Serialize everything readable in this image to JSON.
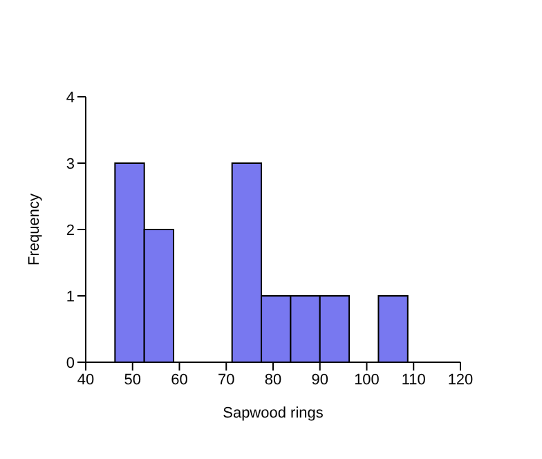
{
  "chart_data": {
    "type": "histogram",
    "xlabel": "Sapwood rings",
    "ylabel": "Frequency",
    "bins": [
      46.25,
      52.5,
      58.75,
      65,
      71.25,
      77.5,
      83.75,
      90,
      96.25,
      102.5,
      108.75
    ],
    "values": [
      3,
      2,
      0,
      0,
      3,
      1,
      1,
      1,
      0,
      1
    ],
    "color": "#7878f0",
    "xlim": [
      40,
      120
    ],
    "xticks": [
      40,
      50,
      60,
      70,
      80,
      90,
      100,
      110,
      120
    ],
    "ylim": [
      0,
      4
    ],
    "yticks": [
      0,
      1,
      2,
      3,
      4
    ],
    "grid": false
  }
}
